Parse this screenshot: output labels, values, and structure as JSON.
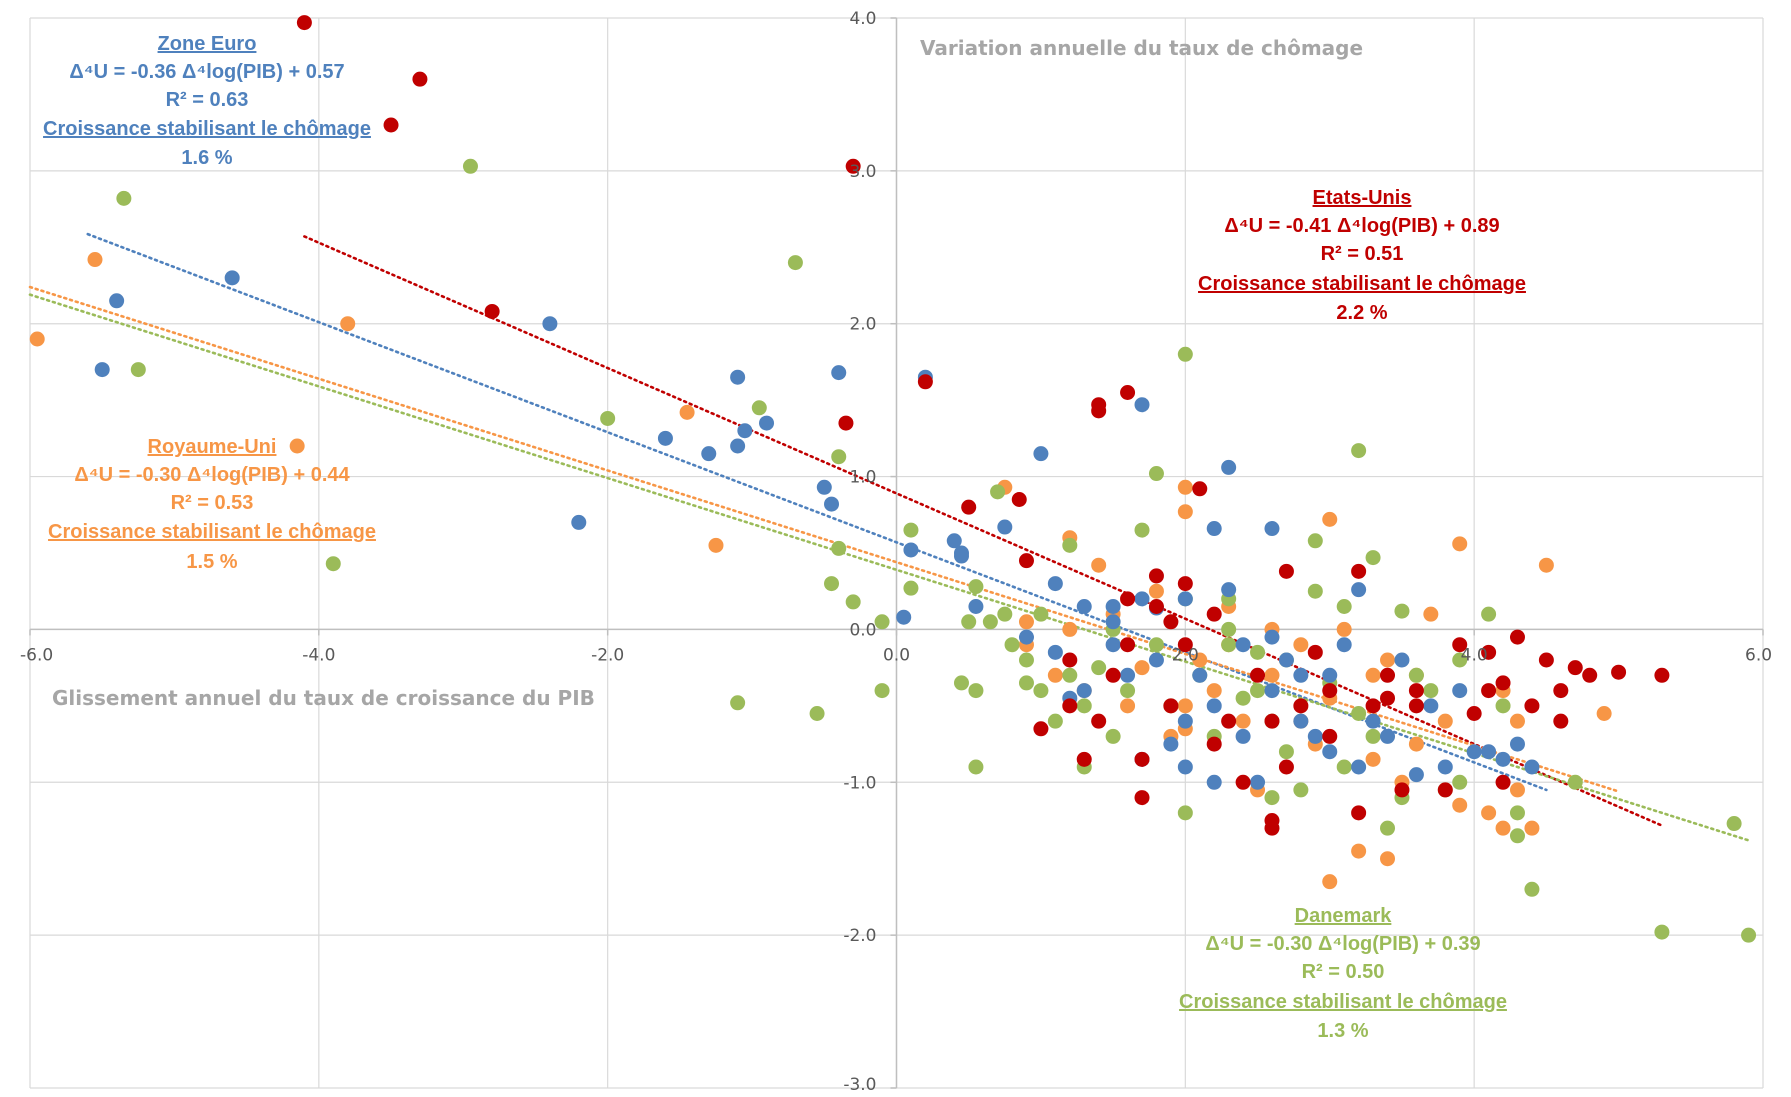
{
  "chart_data": {
    "type": "scatter",
    "xlabel": "Glissement annuel du taux de croissance du PIB",
    "ylabel": "Variation annuelle du taux de chômage",
    "xlim": [
      -6,
      6
    ],
    "ylim": [
      -3,
      4
    ],
    "x_ticks": [
      "-6.0",
      "-4.0",
      "-2.0",
      "0.0",
      "2.0",
      "4.0",
      "6.0"
    ],
    "y_ticks": [
      "4.0",
      "3.0",
      "2.0",
      "1.0",
      "0.0",
      "-1.0",
      "-2.0",
      "-3.0"
    ],
    "grid": true,
    "series": [
      {
        "name": "Zone Euro",
        "color": "#4f81bd",
        "trend": {
          "slope": -0.36,
          "intercept": 0.57,
          "x_range": [
            -5.6,
            4.5
          ]
        },
        "annotation": {
          "title": "Zone Euro",
          "equation": "Δ⁴U = -0.36 Δ⁴log(PIB) + 0.57",
          "r2": "R² = 0.63",
          "label": "Croissance stabilisant le chômage",
          "value": "1.6 %"
        },
        "points": [
          [
            -5.5,
            1.7
          ],
          [
            -5.4,
            2.15
          ],
          [
            -4.6,
            2.3
          ],
          [
            -2.4,
            2.0
          ],
          [
            -2.2,
            0.7
          ],
          [
            -1.6,
            1.25
          ],
          [
            -1.3,
            1.15
          ],
          [
            -1.1,
            1.65
          ],
          [
            -1.05,
            1.3
          ],
          [
            -1.1,
            1.2
          ],
          [
            -0.9,
            1.35
          ],
          [
            -0.5,
            0.93
          ],
          [
            -0.45,
            0.82
          ],
          [
            -0.4,
            1.68
          ],
          [
            0.05,
            0.08
          ],
          [
            0.1,
            0.52
          ],
          [
            0.2,
            1.65
          ],
          [
            0.4,
            0.58
          ],
          [
            0.45,
            0.5
          ],
          [
            0.45,
            0.48
          ],
          [
            0.55,
            0.15
          ],
          [
            0.75,
            0.67
          ],
          [
            1.0,
            1.15
          ],
          [
            1.5,
            0.15
          ],
          [
            1.5,
            0.05
          ],
          [
            1.7,
            1.47
          ],
          [
            1.7,
            0.2
          ],
          [
            1.8,
            0.14
          ],
          [
            2.3,
            1.06
          ],
          [
            2.2,
            0.66
          ],
          [
            2.3,
            0.26
          ],
          [
            2.6,
            0.66
          ],
          [
            2.8,
            -0.3
          ],
          [
            3.2,
            0.26
          ],
          [
            1.1,
            -0.15
          ],
          [
            1.3,
            -0.4
          ],
          [
            1.5,
            -0.1
          ],
          [
            1.8,
            -0.2
          ],
          [
            2.0,
            -0.6
          ],
          [
            2.2,
            -0.5
          ],
          [
            2.4,
            -0.7
          ],
          [
            2.6,
            -0.4
          ],
          [
            2.8,
            -0.6
          ],
          [
            3.0,
            -0.8
          ],
          [
            3.2,
            -0.9
          ],
          [
            3.4,
            -0.7
          ],
          [
            3.6,
            -0.95
          ],
          [
            3.8,
            -0.9
          ],
          [
            4.0,
            -0.8
          ],
          [
            4.2,
            -0.85
          ],
          [
            4.4,
            -0.9
          ],
          [
            2.0,
            -0.9
          ],
          [
            2.2,
            -1.0
          ],
          [
            2.5,
            -1.0
          ],
          [
            2.9,
            -0.7
          ],
          [
            3.3,
            -0.6
          ],
          [
            3.7,
            -0.5
          ],
          [
            4.1,
            -0.8
          ],
          [
            1.6,
            -0.3
          ],
          [
            1.9,
            -0.75
          ],
          [
            2.7,
            -0.2
          ],
          [
            1.2,
            -0.45
          ],
          [
            2.4,
            -0.1
          ],
          [
            3.0,
            -0.3
          ],
          [
            3.5,
            -0.2
          ],
          [
            3.9,
            -0.4
          ],
          [
            1.3,
            0.15
          ],
          [
            1.1,
            0.3
          ],
          [
            2.0,
            0.2
          ],
          [
            2.6,
            -0.05
          ],
          [
            4.3,
            -0.75
          ],
          [
            1.7,
            -0.85
          ],
          [
            2.1,
            -0.3
          ],
          [
            3.1,
            -0.1
          ],
          [
            0.9,
            -0.05
          ]
        ]
      },
      {
        "name": "Etats-Unis",
        "color": "#c00000",
        "trend": {
          "slope": -0.41,
          "intercept": 0.89,
          "x_range": [
            -4.1,
            5.3
          ]
        },
        "annotation": {
          "title": "Etats-Unis",
          "equation": "Δ⁴U = -0.41 Δ⁴log(PIB) + 0.89",
          "r2": "R² = 0.51",
          "label": "Croissance stabilisant le chômage",
          "value": "2.2 %"
        },
        "points": [
          [
            -4.1,
            3.97
          ],
          [
            -3.3,
            3.6
          ],
          [
            -3.5,
            3.3
          ],
          [
            -2.8,
            2.08
          ],
          [
            -0.3,
            3.03
          ],
          [
            -0.35,
            1.35
          ],
          [
            0.2,
            1.62
          ],
          [
            0.5,
            0.8
          ],
          [
            0.85,
            0.85
          ],
          [
            0.9,
            0.45
          ],
          [
            1.4,
            1.47
          ],
          [
            1.4,
            1.43
          ],
          [
            1.6,
            1.55
          ],
          [
            2.1,
            0.92
          ],
          [
            2.7,
            0.38
          ],
          [
            3.2,
            0.38
          ],
          [
            1.8,
            0.35
          ],
          [
            2.0,
            0.3
          ],
          [
            1.6,
            0.2
          ],
          [
            1.8,
            0.15
          ],
          [
            1.9,
            0.05
          ],
          [
            2.5,
            -0.3
          ],
          [
            3.3,
            -0.5
          ],
          [
            3.6,
            -0.4
          ],
          [
            4.1,
            -0.15
          ],
          [
            4.3,
            -0.05
          ],
          [
            4.5,
            -0.2
          ],
          [
            4.7,
            -0.25
          ],
          [
            4.8,
            -0.3
          ],
          [
            5.0,
            -0.28
          ],
          [
            5.3,
            -0.3
          ],
          [
            4.1,
            -0.4
          ],
          [
            4.4,
            -0.5
          ],
          [
            4.6,
            -0.6
          ],
          [
            1.0,
            -0.65
          ],
          [
            1.3,
            -0.85
          ],
          [
            1.7,
            -0.85
          ],
          [
            1.7,
            -1.1
          ],
          [
            2.4,
            -1.0
          ],
          [
            2.6,
            -1.25
          ],
          [
            2.6,
            -1.3
          ],
          [
            3.2,
            -1.2
          ],
          [
            3.5,
            -1.05
          ],
          [
            3.8,
            -1.05
          ],
          [
            4.2,
            -1.0
          ],
          [
            2.3,
            -0.6
          ],
          [
            2.6,
            -0.6
          ],
          [
            3.0,
            -0.4
          ],
          [
            1.2,
            -0.5
          ],
          [
            1.4,
            -0.6
          ],
          [
            2.0,
            -0.1
          ],
          [
            2.9,
            -0.15
          ],
          [
            3.4,
            -0.3
          ],
          [
            3.9,
            -0.1
          ],
          [
            4.2,
            -0.35
          ],
          [
            1.6,
            -0.1
          ],
          [
            2.2,
            -0.75
          ],
          [
            2.7,
            -0.9
          ],
          [
            1.5,
            -0.3
          ],
          [
            1.2,
            -0.2
          ],
          [
            2.8,
            -0.5
          ],
          [
            4.6,
            -0.4
          ],
          [
            3.0,
            -0.7
          ],
          [
            3.4,
            -0.45
          ],
          [
            2.2,
            0.1
          ],
          [
            4.0,
            -0.55
          ],
          [
            1.9,
            -0.5
          ],
          [
            3.6,
            -0.5
          ]
        ]
      },
      {
        "name": "Royaume-Uni",
        "color": "#f79646",
        "trend": {
          "slope": -0.3,
          "intercept": 0.44,
          "x_range": [
            -6.0,
            5.0
          ]
        },
        "annotation": {
          "title": "Royaume-Uni",
          "equation": "Δ⁴U = -0.30 Δ⁴log(PIB) + 0.44",
          "r2": "R² = 0.53",
          "label": "Croissance stabilisant le chômage",
          "value": "1.5 %"
        },
        "points": [
          [
            -5.95,
            1.9
          ],
          [
            -5.55,
            2.42
          ],
          [
            -3.8,
            2.0
          ],
          [
            -4.15,
            1.2
          ],
          [
            -1.45,
            1.42
          ],
          [
            -1.25,
            0.55
          ],
          [
            0.75,
            0.93
          ],
          [
            0.9,
            0.05
          ],
          [
            1.2,
            0.6
          ],
          [
            1.4,
            0.42
          ],
          [
            2.0,
            0.93
          ],
          [
            2.0,
            0.77
          ],
          [
            3.0,
            0.72
          ],
          [
            3.9,
            0.56
          ],
          [
            4.5,
            0.42
          ],
          [
            1.8,
            0.25
          ],
          [
            2.3,
            0.15
          ],
          [
            2.6,
            0.0
          ],
          [
            3.1,
            0.0
          ],
          [
            3.7,
            0.1
          ],
          [
            2.8,
            -0.1
          ],
          [
            3.4,
            -0.2
          ],
          [
            3.6,
            -0.3
          ],
          [
            2.0,
            -0.5
          ],
          [
            2.2,
            -0.4
          ],
          [
            2.4,
            -0.6
          ],
          [
            2.9,
            -0.75
          ],
          [
            3.3,
            -0.85
          ],
          [
            3.5,
            -1.0
          ],
          [
            3.9,
            -1.15
          ],
          [
            4.1,
            -1.2
          ],
          [
            4.2,
            -1.3
          ],
          [
            4.3,
            -1.05
          ],
          [
            4.4,
            -1.3
          ],
          [
            4.9,
            -0.55
          ],
          [
            3.0,
            -1.65
          ],
          [
            3.2,
            -1.45
          ],
          [
            3.4,
            -1.5
          ],
          [
            2.5,
            -1.05
          ],
          [
            1.9,
            -0.7
          ],
          [
            1.6,
            -0.5
          ],
          [
            1.3,
            -0.4
          ],
          [
            1.1,
            -0.3
          ],
          [
            0.9,
            -0.1
          ],
          [
            2.1,
            -0.2
          ],
          [
            2.6,
            -0.3
          ],
          [
            3.0,
            -0.45
          ],
          [
            4.2,
            -0.4
          ],
          [
            3.8,
            -0.6
          ],
          [
            1.5,
            0.1
          ],
          [
            2.3,
            -0.1
          ],
          [
            1.7,
            -0.25
          ],
          [
            2.8,
            -0.6
          ],
          [
            3.6,
            -0.75
          ],
          [
            4.3,
            -0.6
          ],
          [
            2.0,
            -0.65
          ],
          [
            1.2,
            0.0
          ],
          [
            3.3,
            -0.3
          ]
        ]
      },
      {
        "name": "Danemark",
        "color": "#9bbb59",
        "trend": {
          "slope": -0.3,
          "intercept": 0.39,
          "x_range": [
            -6.0,
            5.9
          ]
        },
        "annotation": {
          "title": "Danemark",
          "equation": "Δ⁴U = -0.30 Δ⁴log(PIB) + 0.39",
          "r2": "R² = 0.50",
          "label": "Croissance stabilisant le chômage",
          "value": "1.3 %"
        },
        "points": [
          [
            -5.35,
            2.82
          ],
          [
            -5.25,
            1.7
          ],
          [
            -3.9,
            0.43
          ],
          [
            -2.95,
            3.03
          ],
          [
            -2.0,
            1.38
          ],
          [
            -0.95,
            1.45
          ],
          [
            -0.7,
            2.4
          ],
          [
            -0.4,
            1.13
          ],
          [
            -0.4,
            0.53
          ],
          [
            -0.3,
            0.18
          ],
          [
            -0.45,
            0.3
          ],
          [
            -0.1,
            0.05
          ],
          [
            -0.1,
            -0.4
          ],
          [
            -0.55,
            -0.55
          ],
          [
            -1.1,
            -0.48
          ],
          [
            0.1,
            0.65
          ],
          [
            0.1,
            0.27
          ],
          [
            0.45,
            -0.35
          ],
          [
            0.5,
            0.05
          ],
          [
            0.55,
            0.28
          ],
          [
            0.55,
            -0.4
          ],
          [
            0.65,
            0.05
          ],
          [
            0.7,
            0.9
          ],
          [
            0.75,
            0.1
          ],
          [
            0.55,
            -0.9
          ],
          [
            0.9,
            -0.2
          ],
          [
            1.0,
            -0.4
          ],
          [
            1.2,
            -0.3
          ],
          [
            1.3,
            -0.5
          ],
          [
            1.3,
            -0.9
          ],
          [
            1.7,
            0.65
          ],
          [
            1.8,
            1.02
          ],
          [
            2.0,
            1.8
          ],
          [
            2.0,
            0.2
          ],
          [
            2.3,
            0.2
          ],
          [
            2.3,
            -0.1
          ],
          [
            2.5,
            -0.4
          ],
          [
            2.6,
            -0.6
          ],
          [
            2.7,
            -0.8
          ],
          [
            2.8,
            -1.05
          ],
          [
            2.9,
            0.58
          ],
          [
            3.1,
            -0.9
          ],
          [
            3.2,
            1.17
          ],
          [
            3.3,
            0.47
          ],
          [
            3.5,
            0.12
          ],
          [
            3.5,
            -1.1
          ],
          [
            3.7,
            -0.4
          ],
          [
            3.8,
            -1.05
          ],
          [
            3.9,
            -1.0
          ],
          [
            3.9,
            -0.2
          ],
          [
            4.1,
            0.1
          ],
          [
            4.2,
            -0.5
          ],
          [
            4.3,
            -1.35
          ],
          [
            4.3,
            -1.2
          ],
          [
            4.4,
            -1.7
          ],
          [
            4.7,
            -1.0
          ],
          [
            5.3,
            -1.98
          ],
          [
            5.8,
            -1.27
          ],
          [
            5.9,
            -2.0
          ],
          [
            2.0,
            -1.2
          ],
          [
            2.2,
            -0.7
          ],
          [
            2.4,
            -0.45
          ],
          [
            1.5,
            -0.7
          ],
          [
            1.6,
            -0.4
          ],
          [
            1.9,
            -0.5
          ],
          [
            2.1,
            -0.3
          ],
          [
            2.7,
            -0.2
          ],
          [
            3.0,
            -0.35
          ],
          [
            3.3,
            -0.7
          ],
          [
            3.4,
            -1.3
          ],
          [
            1.1,
            -0.6
          ],
          [
            1.4,
            -0.25
          ],
          [
            2.5,
            -0.15
          ],
          [
            2.9,
            0.25
          ],
          [
            3.1,
            0.15
          ],
          [
            3.6,
            -0.3
          ],
          [
            1.0,
            0.1
          ],
          [
            1.5,
            0.0
          ],
          [
            2.3,
            0.0
          ],
          [
            2.6,
            -1.1
          ],
          [
            3.2,
            -0.55
          ],
          [
            0.8,
            -0.1
          ],
          [
            1.8,
            -0.1
          ],
          [
            1.2,
            0.55
          ],
          [
            0.9,
            -0.35
          ]
        ]
      }
    ]
  }
}
